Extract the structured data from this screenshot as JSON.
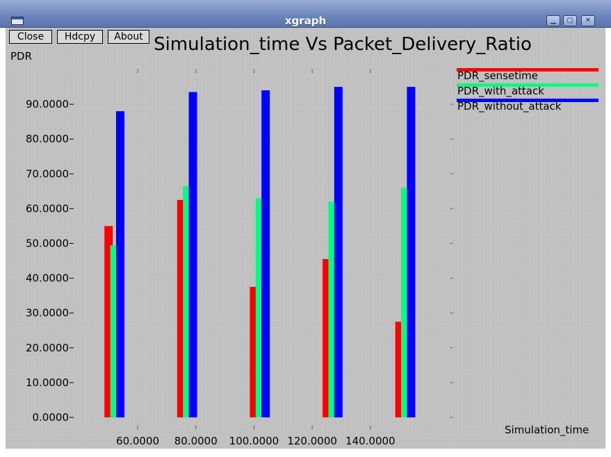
{
  "window": {
    "title": "xgraph"
  },
  "toolbar": {
    "close_label": "Close",
    "hdcpy_label": "Hdcpy",
    "about_label": "About"
  },
  "chart_data": {
    "type": "bar",
    "title": "Simulation_time Vs Packet_Delivery_Ratio",
    "xlabel": "Simulation_time",
    "ylabel": "PDR",
    "xlim": [
      38,
      168
    ],
    "ylim": [
      0,
      100
    ],
    "yticks": [
      0,
      10,
      20,
      30,
      40,
      50,
      60,
      70,
      80,
      90
    ],
    "ytick_labels": [
      "0.0000",
      "10.0000",
      "20.0000",
      "30.0000",
      "40.0000",
      "50.0000",
      "60.0000",
      "70.0000",
      "80.0000",
      "90.0000"
    ],
    "xticks": [
      60,
      80,
      100,
      120,
      140
    ],
    "xtick_labels": [
      "60.0000",
      "80.0000",
      "100.0000",
      "120.0000",
      "140.0000"
    ],
    "legend": "top-right",
    "series": [
      {
        "name": "PDR_sensetime",
        "color": "#ff0000",
        "x": [
          50,
          75,
          100,
          125,
          150
        ],
        "values": [
          55.0,
          62.5,
          37.5,
          45.5,
          27.5
        ]
      },
      {
        "name": "PDR_with_attack",
        "color": "#00ff7f",
        "x": [
          52,
          77,
          102,
          127,
          152
        ],
        "values": [
          49.5,
          66.5,
          63.0,
          62.0,
          66.0
        ]
      },
      {
        "name": "PDR_without_attack",
        "color": "#0000ff",
        "x": [
          54,
          79,
          104,
          129,
          154
        ],
        "values": [
          88.0,
          93.5,
          94.0,
          95.0,
          95.0
        ]
      }
    ]
  }
}
